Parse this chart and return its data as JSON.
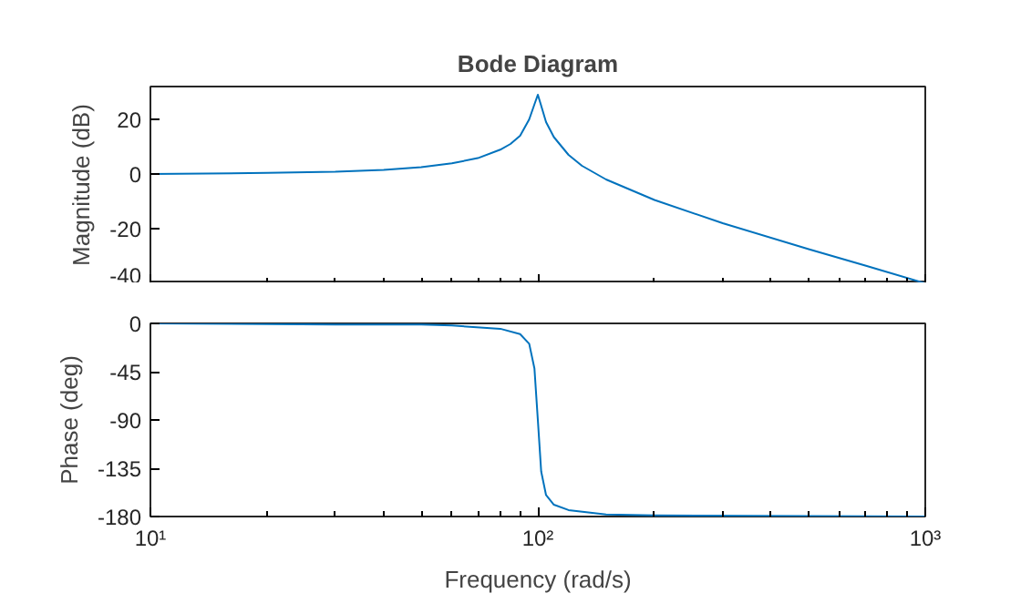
{
  "chart_data": [
    {
      "type": "line",
      "title": "Bode Diagram",
      "ylabel": "Magnitude (dB)",
      "log": "x",
      "xlim": [
        10,
        1000
      ],
      "xticks": [
        {
          "value": 10,
          "label": null
        },
        {
          "value": 100,
          "label": null
        },
        {
          "value": 1000,
          "label": null
        }
      ],
      "ylim": [
        -40,
        32
      ],
      "yticks": [
        -40,
        -20,
        0,
        20
      ],
      "tick_labels": "y",
      "grid": false,
      "x": [
        10,
        20,
        30,
        40,
        50,
        60,
        70,
        80,
        85,
        90,
        95,
        98,
        100,
        102,
        105,
        110,
        120,
        130,
        150,
        200,
        300,
        500,
        700,
        1000
      ],
      "series": [
        {
          "color": "#0072bd",
          "values": [
            0,
            0.4,
            0.8,
            1.5,
            2.5,
            3.9,
            5.8,
            8.9,
            11,
            14,
            20,
            25.5,
            29,
            25,
            19,
            13.5,
            7,
            3,
            -2,
            -9.5,
            -18,
            -27.5,
            -33.5,
            -40
          ]
        }
      ]
    },
    {
      "type": "line",
      "xlabel": "Frequency (rad/s)",
      "ylabel": "Phase (deg)",
      "log": "x",
      "xlim": [
        10,
        1000
      ],
      "xticks": [
        {
          "value": 10,
          "label": "10¹"
        },
        {
          "value": 100,
          "label": "10²"
        },
        {
          "value": 1000,
          "label": "10³"
        }
      ],
      "ylim": [
        -180,
        0
      ],
      "yticks": [
        -180,
        -135,
        -90,
        -45,
        0
      ],
      "grid": false,
      "x": [
        10,
        30,
        50,
        60,
        80,
        90,
        95,
        98,
        100,
        102,
        105,
        110,
        120,
        150,
        200,
        1000
      ],
      "series": [
        {
          "color": "#0072bd",
          "values": [
            0,
            -1,
            -1,
            -2,
            -5,
            -10,
            -19,
            -42,
            -90,
            -138,
            -160,
            -169,
            -174,
            -178,
            -179,
            -180
          ]
        }
      ]
    }
  ]
}
